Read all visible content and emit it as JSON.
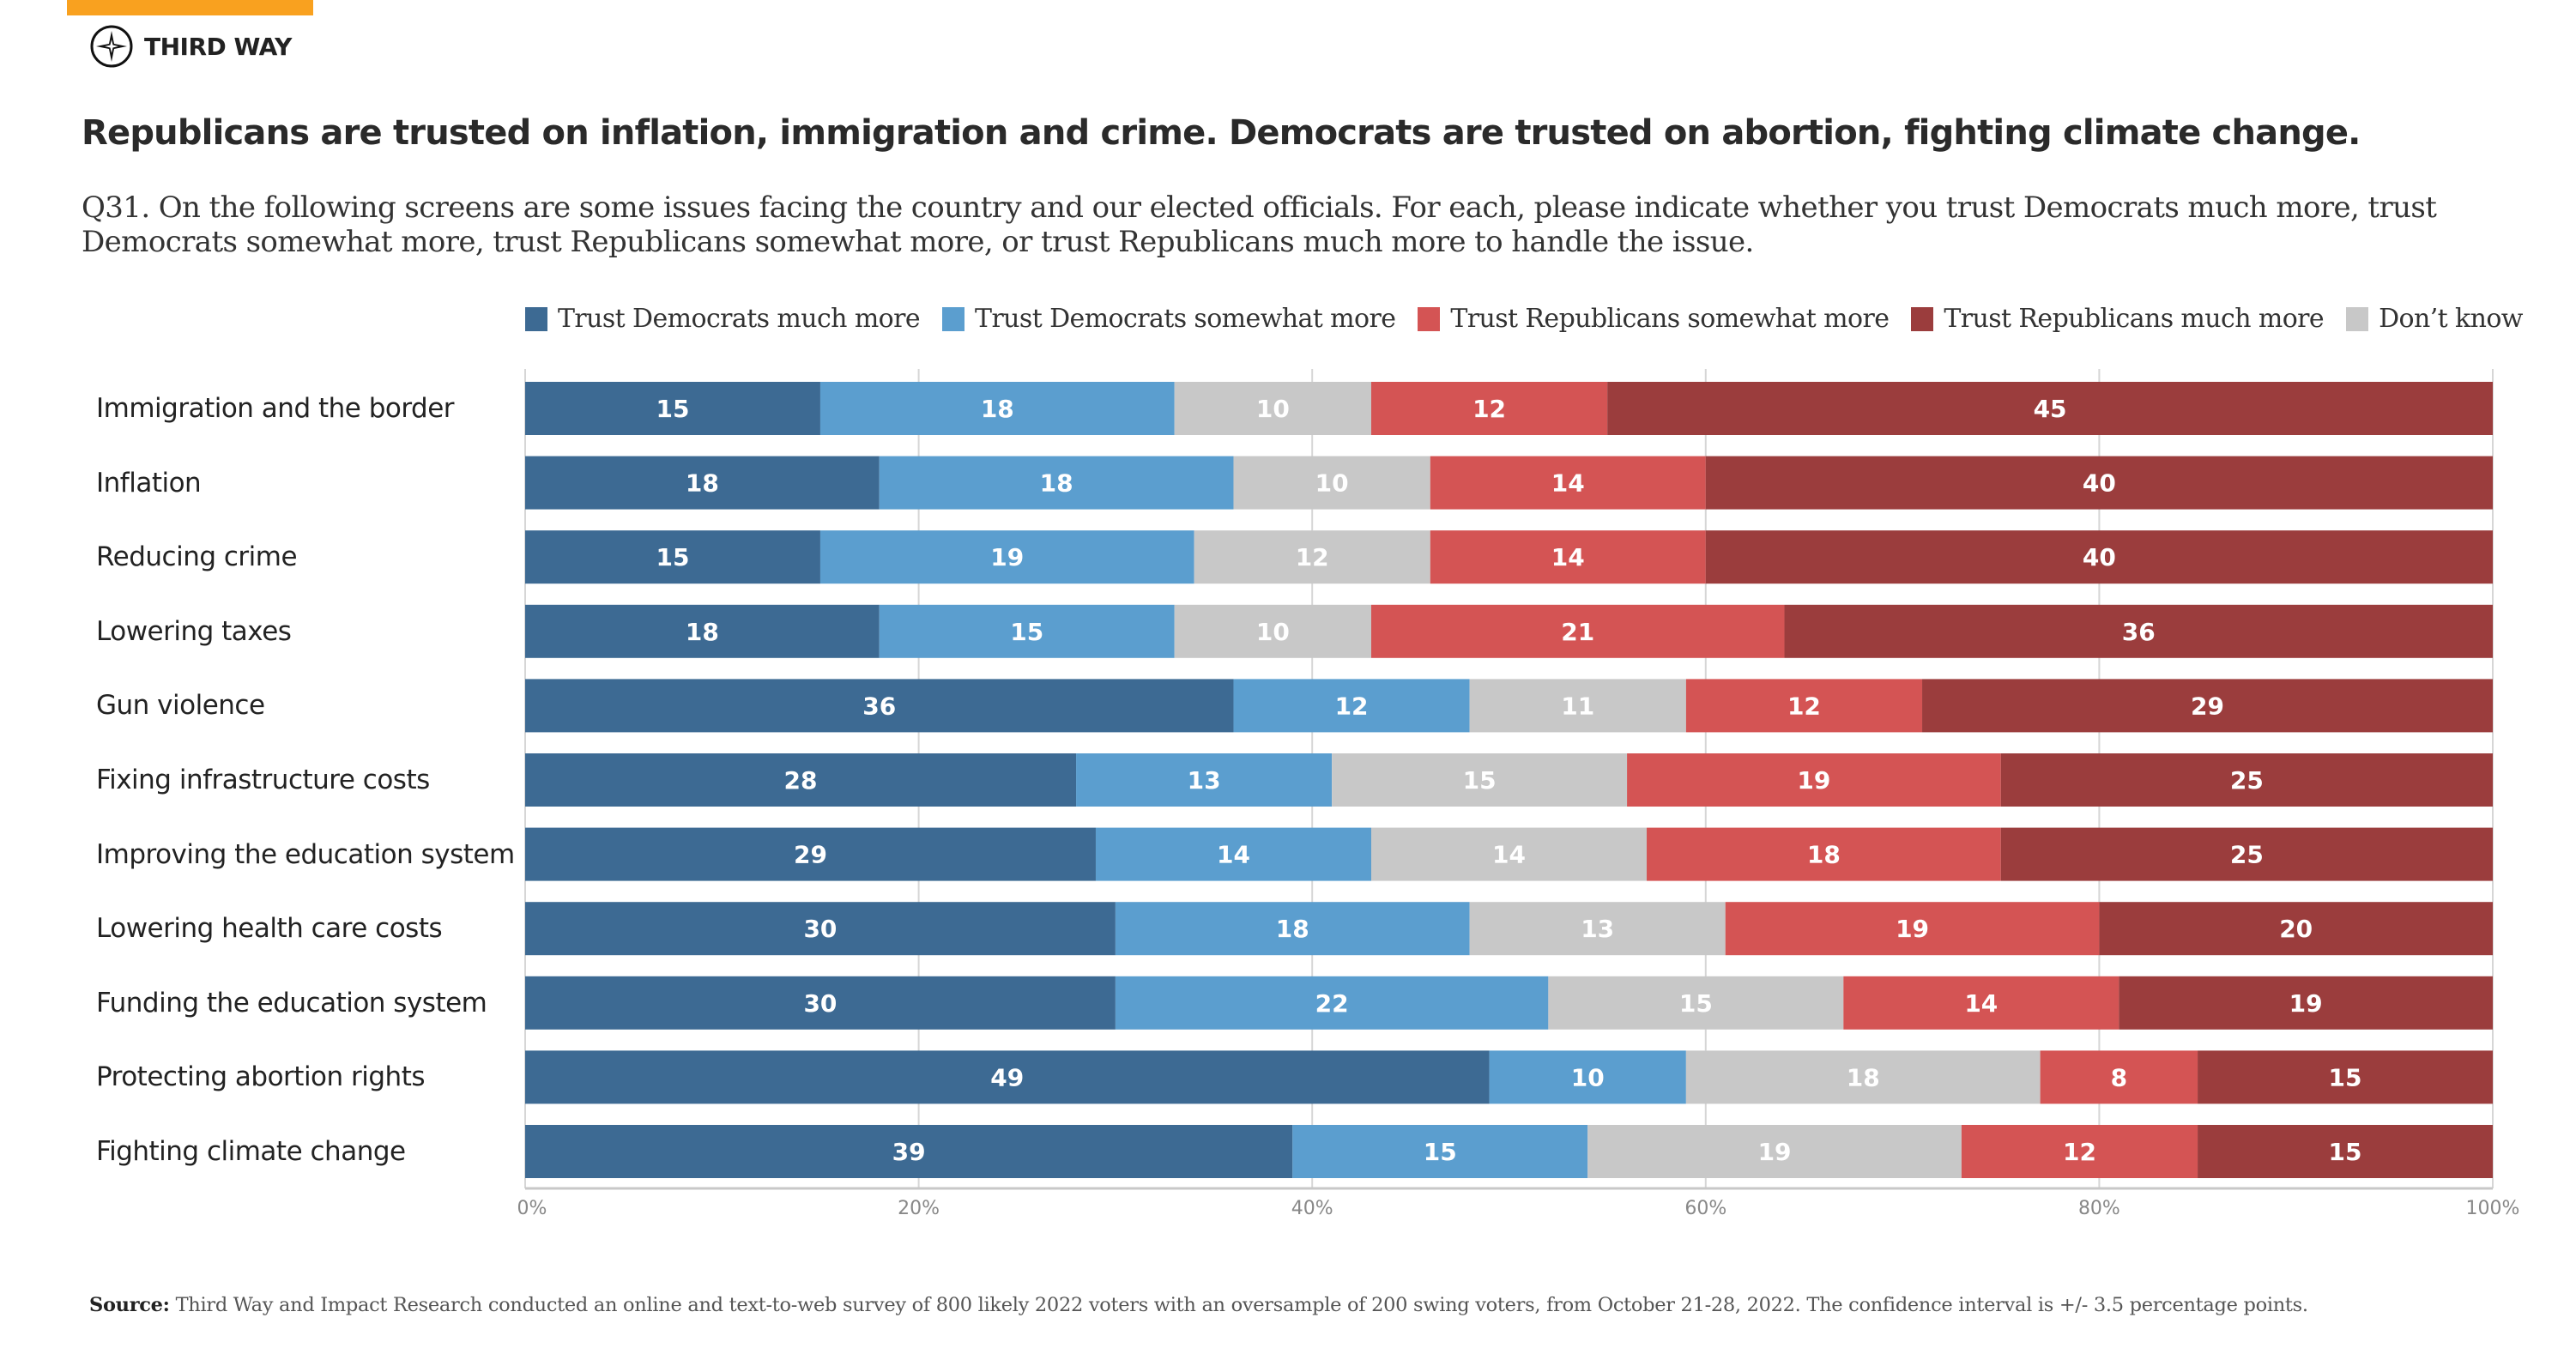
{
  "brand": {
    "logo_text": "THIRD WAY",
    "accent_color": "#f9a11f"
  },
  "title": "Republicans are trusted on inflation, immigration and crime. Democrats are trusted on abortion, fighting climate change.",
  "subtitle": "Q31. On the following screens are some issues facing the country and our elected officials. For each, please indicate whether you trust Democrats much more, trust Democrats somewhat more, trust Republicans somewhat more, or trust Republicans much more to handle the issue.",
  "source": {
    "label": "Source:",
    "text": "Third Way and Impact Research conducted an online and text-to-web survey of 800 likely 2022 voters with an oversample of 200 swing voters, from October 21-28, 2022. The confidence interval is +/- 3.5 percentage points."
  },
  "chart_data": {
    "type": "bar",
    "orientation": "horizontal",
    "stacked": true,
    "title": "",
    "xlabel": "",
    "ylabel": "",
    "xlim": [
      0,
      100
    ],
    "x_ticks": [
      "0%",
      "20%",
      "40%",
      "60%",
      "80%",
      "100%"
    ],
    "grid": true,
    "legend_position": "top",
    "legend": [
      {
        "name": "Trust Democrats much more",
        "color": "#3d6a93"
      },
      {
        "name": "Trust Democrats somewhat more",
        "color": "#5b9ecf"
      },
      {
        "name": "Trust Republicans somewhat more",
        "color": "#d45454"
      },
      {
        "name": "Trust Republicans much more",
        "color": "#9b3d3d"
      },
      {
        "name": "Don’t know",
        "color": "#c8c8c8"
      }
    ],
    "categories": [
      "Immigration and the border",
      "Inflation",
      "Reducing crime",
      "Lowering taxes",
      "Gun violence",
      "Fixing infrastructure costs",
      "Improving the education system",
      "Lowering health care costs",
      "Funding the education system",
      "Protecting abortion rights",
      "Fighting climate change"
    ],
    "series": [
      {
        "name": "Trust Democrats much more",
        "color": "#3d6a93",
        "values": [
          15,
          18,
          15,
          18,
          36,
          28,
          29,
          30,
          30,
          49,
          39
        ]
      },
      {
        "name": "Trust Democrats somewhat more",
        "color": "#5b9ecf",
        "values": [
          18,
          18,
          19,
          15,
          12,
          13,
          14,
          18,
          22,
          10,
          15
        ]
      },
      {
        "name": "Don’t know",
        "color": "#c8c8c8",
        "values": [
          10,
          10,
          12,
          10,
          11,
          15,
          14,
          13,
          15,
          18,
          19
        ]
      },
      {
        "name": "Trust Republicans somewhat more",
        "color": "#d45454",
        "values": [
          12,
          14,
          14,
          21,
          12,
          19,
          18,
          19,
          14,
          8,
          12
        ]
      },
      {
        "name": "Trust Republicans much more",
        "color": "#9b3d3d",
        "values": [
          45,
          40,
          40,
          36,
          29,
          25,
          25,
          20,
          19,
          15,
          15
        ]
      }
    ]
  }
}
